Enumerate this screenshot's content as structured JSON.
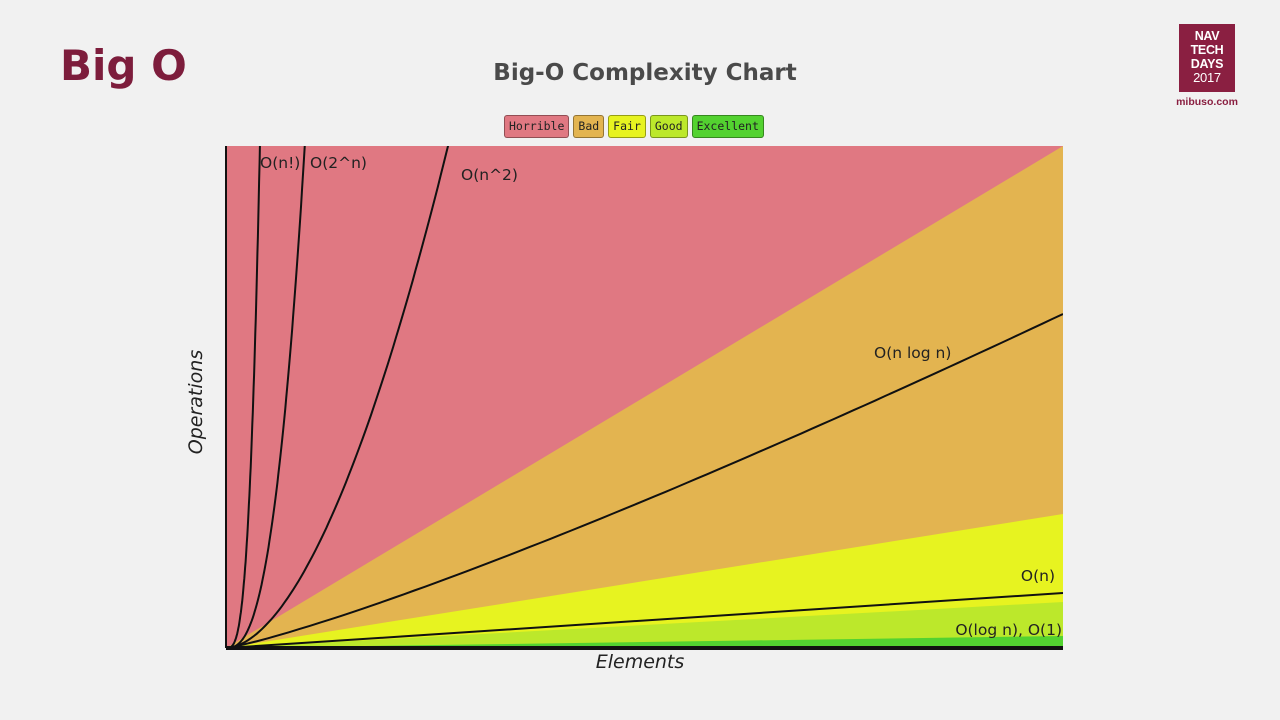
{
  "slide": {
    "title": "Big O"
  },
  "logo": {
    "lines": [
      "NAV",
      "TECH",
      "DAYS",
      "2017"
    ],
    "sub": "mibuso.com"
  },
  "chart_data": {
    "type": "line",
    "title": "Big-O Complexity Chart",
    "xlabel": "Elements",
    "ylabel": "Operations",
    "legend": {
      "placement": "top-center",
      "entries": [
        {
          "label": "Horrible",
          "color": "#e07882"
        },
        {
          "label": "Bad",
          "color": "#e3b450"
        },
        {
          "label": "Fair",
          "color": "#e7f320"
        },
        {
          "label": "Good",
          "color": "#bce82b"
        },
        {
          "label": "Excellent",
          "color": "#53d230"
        }
      ]
    },
    "bands": [
      {
        "name": "Horrible",
        "color": "#e07882"
      },
      {
        "name": "Bad",
        "color": "#e3b450"
      },
      {
        "name": "Fair",
        "color": "#e7f320"
      },
      {
        "name": "Good",
        "color": "#bce82b"
      },
      {
        "name": "Excellent",
        "color": "#53d230"
      }
    ],
    "series": [
      {
        "label": "O(n!)",
        "fn": "factorial"
      },
      {
        "label": "O(2^n)",
        "fn": "exponential"
      },
      {
        "label": "O(n^2)",
        "fn": "quadratic"
      },
      {
        "label": "O(n log n)",
        "fn": "nlogn"
      },
      {
        "label": "O(n)",
        "fn": "linear"
      },
      {
        "label": "O(log n), O(1)",
        "fn": "log_const"
      }
    ],
    "grid": false
  }
}
